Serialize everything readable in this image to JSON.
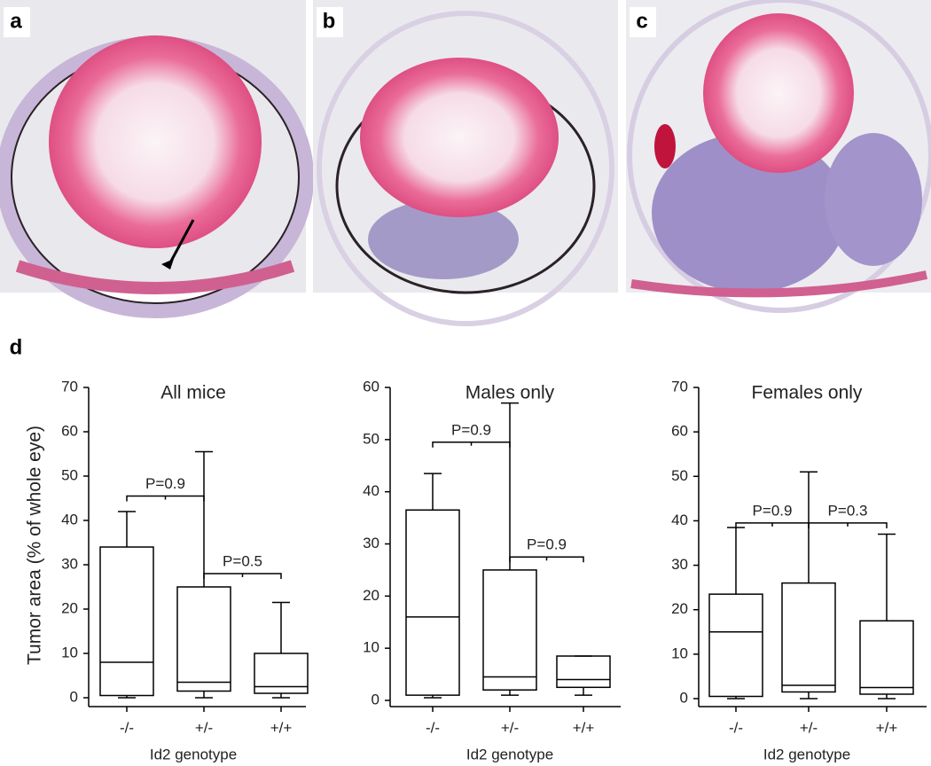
{
  "panel_labels": [
    "a",
    "b",
    "c",
    "d"
  ],
  "chart_data": [
    {
      "type": "box",
      "title": "All mice",
      "xlabel": "Id2 genotype",
      "ylabel": "Tumor area (% of whole eye)",
      "categories": [
        "-/-",
        "+/-",
        "+/+"
      ],
      "low": [
        0,
        0,
        0
      ],
      "q1": [
        0.5,
        1.5,
        1
      ],
      "median": [
        8,
        3.5,
        2.5
      ],
      "q3": [
        34,
        25,
        10
      ],
      "high": [
        42,
        55.5,
        21.5
      ],
      "ylim": [
        0,
        70
      ],
      "yticks": [
        0,
        10,
        20,
        30,
        40,
        50,
        60,
        70
      ],
      "annotations": [
        {
          "text": "P=0.9",
          "y": 45.5
        },
        {
          "text": "P=0.5",
          "y": 28
        }
      ]
    },
    {
      "type": "box",
      "title": "Males only",
      "xlabel": "Id2 genotype",
      "categories": [
        "-/-",
        "+/-",
        "+/+"
      ],
      "low": [
        0.5,
        1,
        1
      ],
      "q1": [
        1,
        2,
        2.5
      ],
      "median": [
        16,
        4.5,
        4
      ],
      "q3": [
        36.5,
        25,
        8.5
      ],
      "high": [
        43.5,
        57,
        8.5
      ],
      "ylim": [
        0,
        60
      ],
      "yticks": [
        0,
        10,
        20,
        30,
        40,
        50,
        60
      ],
      "annotations": [
        {
          "text": "P=0.9",
          "y": 49.5
        },
        {
          "text": "P=0.9",
          "y": 27.5
        }
      ]
    },
    {
      "type": "box",
      "title": "Females only",
      "xlabel": "Id2 genotype",
      "categories": [
        "-/-",
        "+/-",
        "+/+"
      ],
      "low": [
        0,
        0,
        0
      ],
      "q1": [
        0.5,
        1.5,
        1
      ],
      "median": [
        15,
        3,
        2.5
      ],
      "q3": [
        23.5,
        26,
        17.5
      ],
      "high": [
        38.5,
        51,
        37
      ],
      "ylim": [
        0,
        70
      ],
      "yticks": [
        0,
        10,
        20,
        30,
        40,
        50,
        60,
        70
      ],
      "annotations": [
        {
          "text": "P=0.9",
          "y": 39.5
        },
        {
          "text": "P=0.3",
          "y": 39.5
        }
      ]
    }
  ]
}
